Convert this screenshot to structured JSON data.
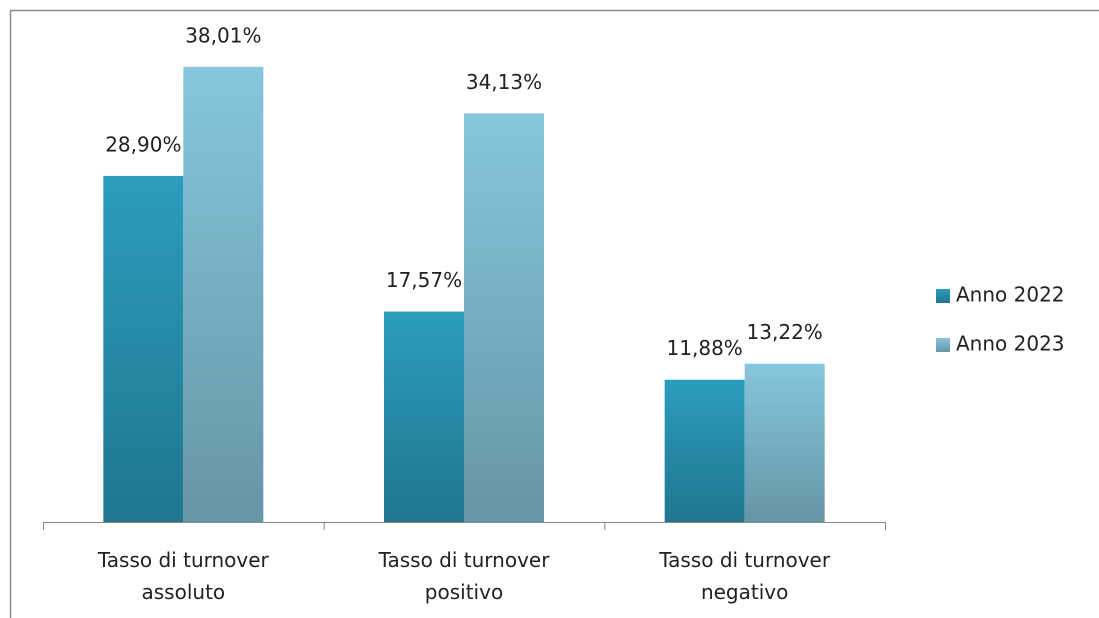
{
  "chart_data": {
    "type": "bar",
    "categories": [
      "Tasso di turnover assoluto",
      "Tasso di turnover positivo",
      "Tasso di turnover negativo"
    ],
    "series": [
      {
        "name": "Anno 2022",
        "color": "#2b9dbd",
        "values": [
          28.9,
          17.57,
          11.88
        ],
        "value_labels": [
          "28,90%",
          "17,57%",
          "11,88%"
        ]
      },
      {
        "name": "Anno 2023",
        "color": "#86c6dd",
        "values": [
          38.01,
          34.13,
          13.22
        ],
        "value_labels": [
          "38,01%",
          "34,13%",
          "13,22%"
        ]
      }
    ],
    "ylim": [
      0,
      40
    ],
    "legend": "right"
  }
}
